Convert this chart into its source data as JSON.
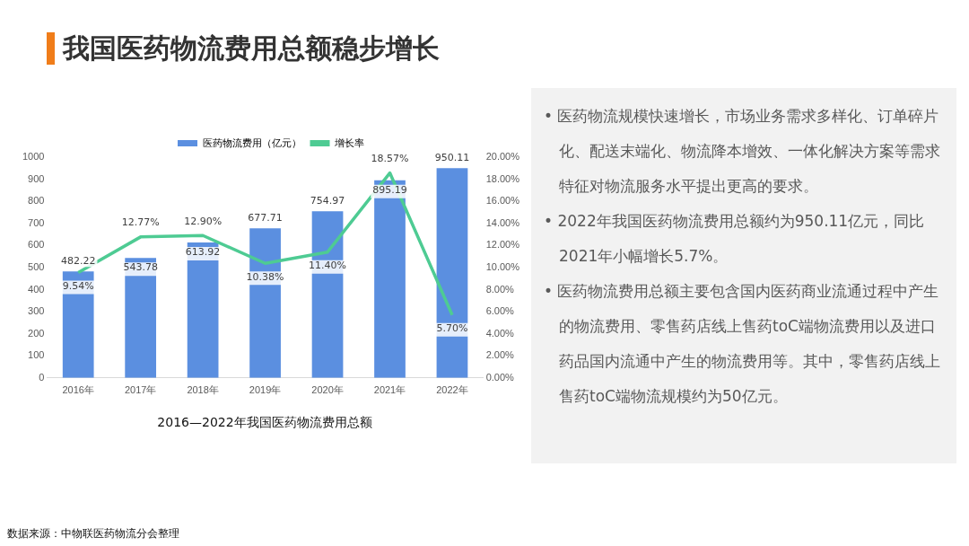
{
  "chart_data": [
    {
      "type": "bar",
      "title": "我国医药物流费用总额稳步增长",
      "categories": [
        "2016年",
        "2017年",
        "2018年",
        "2019年",
        "2020年",
        "2021年",
        "2022年"
      ],
      "series": [
        {
          "name": "医药物流费用（亿元）",
          "type": "bar",
          "color": "#5b8fe0",
          "values": [
            482.22,
            543.78,
            613.92,
            677.71,
            754.97,
            895.19,
            950.11
          ],
          "value_labels": [
            "482.22",
            "543.78",
            "613.92",
            "677.71",
            "754.97",
            "895.19",
            "950.11"
          ]
        },
        {
          "name": "增长率",
          "type": "line",
          "axis": "y2",
          "color": "#4ecb93",
          "values": [
            9.54,
            12.77,
            12.9,
            10.38,
            11.4,
            18.57,
            5.7
          ],
          "value_labels": [
            "9.54%",
            "12.77%",
            "12.90%",
            "10.38%",
            "11.40%",
            "18.57%",
            "5.70%"
          ]
        }
      ],
      "ylim": [
        0,
        1000
      ],
      "yticks": [
        0,
        100,
        200,
        300,
        400,
        500,
        600,
        700,
        800,
        900,
        1000
      ],
      "y2lim": [
        0,
        20
      ],
      "y2ticks": [
        {
          "value": 0,
          "label": "0.00%"
        },
        {
          "value": 2,
          "label": "2.00%"
        },
        {
          "value": 4,
          "label": "4.00%"
        },
        {
          "value": 6,
          "label": "6.00%"
        },
        {
          "value": 8,
          "label": "8.00%"
        },
        {
          "value": 10,
          "label": "10.00%"
        },
        {
          "value": 12,
          "label": "12.00%"
        },
        {
          "value": 14,
          "label": "14.00%"
        },
        {
          "value": 16,
          "label": "16.00%"
        },
        {
          "value": 18,
          "label": "18.00%"
        },
        {
          "value": 20,
          "label": "20.00%"
        }
      ],
      "grid": false,
      "legend": "top",
      "marker": "none",
      "line_style": "solid",
      "annotations": [
        "2016—2022年我国医药物流费用总额",
        "数据来源：中物联医药物流分会整理"
      ]
    },
    {
      "type": "other",
      "annotations": [
        "• 医药物流规模快速增长，市场业务需求多样化、订单碎片化、配送末端化、物流降本增效、一体化解决方案等需求特征对物流服务水平提出更高的要求。",
        "• 2022年我国医药物流费用总额约为950.11亿元，同比2021年小幅增长5.7%。",
        "• 医药物流费用总额主要包含国内医药商业流通过程中产生的物流费用、零售药店线上售药toC端物流费用以及进口药品国内流通中产生的物流费用等。其中，零售药店线上售药toC端物流规模约为50亿元。"
      ]
    }
  ]
}
